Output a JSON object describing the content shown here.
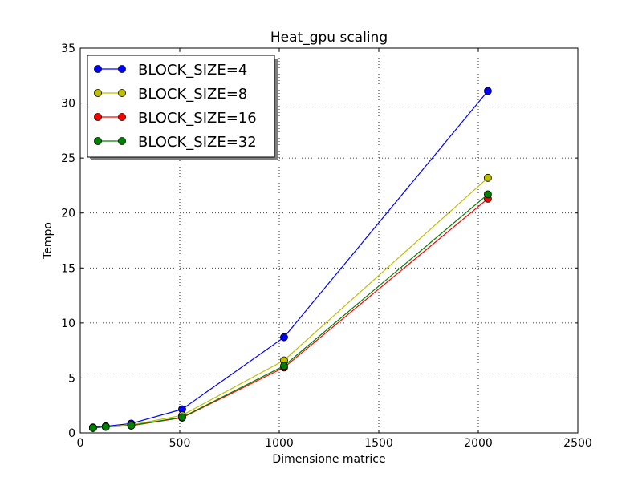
{
  "chart_data": {
    "type": "line",
    "title": "Heat_gpu scaling",
    "xlabel": "Dimensione matrice",
    "ylabel": "Tempo",
    "xlim": [
      0,
      2500
    ],
    "ylim": [
      0,
      35
    ],
    "xticks": [
      0,
      500,
      1000,
      1500,
      2000,
      2500
    ],
    "yticks": [
      0,
      5,
      10,
      15,
      20,
      25,
      30,
      35
    ],
    "grid": true,
    "legend_position": "upper-left",
    "x": [
      64,
      128,
      256,
      512,
      1024,
      2048
    ],
    "series": [
      {
        "name": "BLOCK_SIZE=4",
        "color": "#0000ff",
        "values": [
          0.5,
          0.6,
          0.85,
          2.15,
          8.7,
          31.1
        ]
      },
      {
        "name": "BLOCK_SIZE=8",
        "color": "#bfbf00",
        "values": [
          0.45,
          0.55,
          0.72,
          1.6,
          6.6,
          23.2
        ]
      },
      {
        "name": "BLOCK_SIZE=16",
        "color": "#ff0000",
        "values": [
          0.45,
          0.55,
          0.65,
          1.38,
          5.95,
          21.3
        ]
      },
      {
        "name": "BLOCK_SIZE=32",
        "color": "#008000",
        "values": [
          0.45,
          0.55,
          0.67,
          1.42,
          6.1,
          21.7
        ]
      }
    ]
  }
}
